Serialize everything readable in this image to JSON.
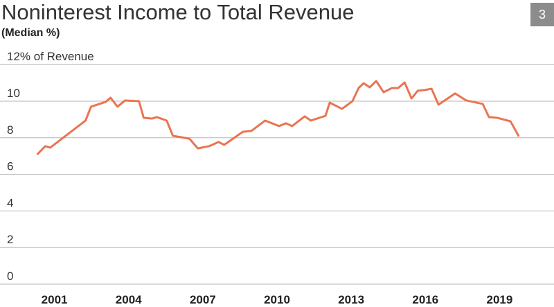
{
  "page_number": "3",
  "chart_data": {
    "type": "line",
    "title": "Noninterest Income to Total Revenue",
    "subtitle": "(Median %)",
    "x": [
      2000.3,
      2000.63,
      2000.83,
      2002.26,
      2002.48,
      2003.07,
      2003.27,
      2003.55,
      2003.86,
      2004.42,
      2004.61,
      2004.95,
      2005.14,
      2005.54,
      2005.79,
      2006.46,
      2006.8,
      2007.25,
      2007.64,
      2007.86,
      2008.62,
      2008.96,
      2009.52,
      2010.08,
      2010.36,
      2010.61,
      2011.12,
      2011.37,
      2011.96,
      2012.13,
      2012.63,
      2013.05,
      2013.3,
      2013.5,
      2013.75,
      2014.01,
      2014.31,
      2014.65,
      2014.9,
      2015.16,
      2015.44,
      2015.69,
      2015.97,
      2016.25,
      2016.53,
      2017.2,
      2017.65,
      2018.32,
      2018.57,
      2018.91,
      2019.44,
      2019.78
    ],
    "series": [
      {
        "color": "#ea7450",
        "values": [
          7.08,
          7.54,
          7.46,
          8.94,
          9.7,
          9.96,
          10.19,
          9.7,
          10.04,
          10.0,
          9.09,
          9.05,
          9.13,
          8.94,
          8.11,
          7.95,
          7.42,
          7.54,
          7.77,
          7.61,
          8.33,
          8.37,
          8.94,
          8.64,
          8.79,
          8.64,
          9.17,
          8.94,
          9.2,
          9.92,
          9.58,
          10.0,
          10.72,
          10.98,
          10.76,
          11.1,
          10.49,
          10.72,
          10.72,
          11.02,
          10.15,
          10.57,
          10.61,
          10.68,
          9.81,
          10.42,
          10.04,
          9.85,
          9.13,
          9.09,
          8.9,
          8.07
        ]
      }
    ],
    "xlim": [
      1998.8,
      2021.2
    ],
    "xticks": [
      2001,
      2004,
      2007,
      2010,
      2013,
      2016,
      2019
    ],
    "ylim": [
      0,
      12
    ],
    "yticks": [
      0,
      2,
      4,
      6,
      8,
      10,
      {
        "value": 12,
        "label": "12% of Revenue"
      }
    ],
    "grid": true
  }
}
